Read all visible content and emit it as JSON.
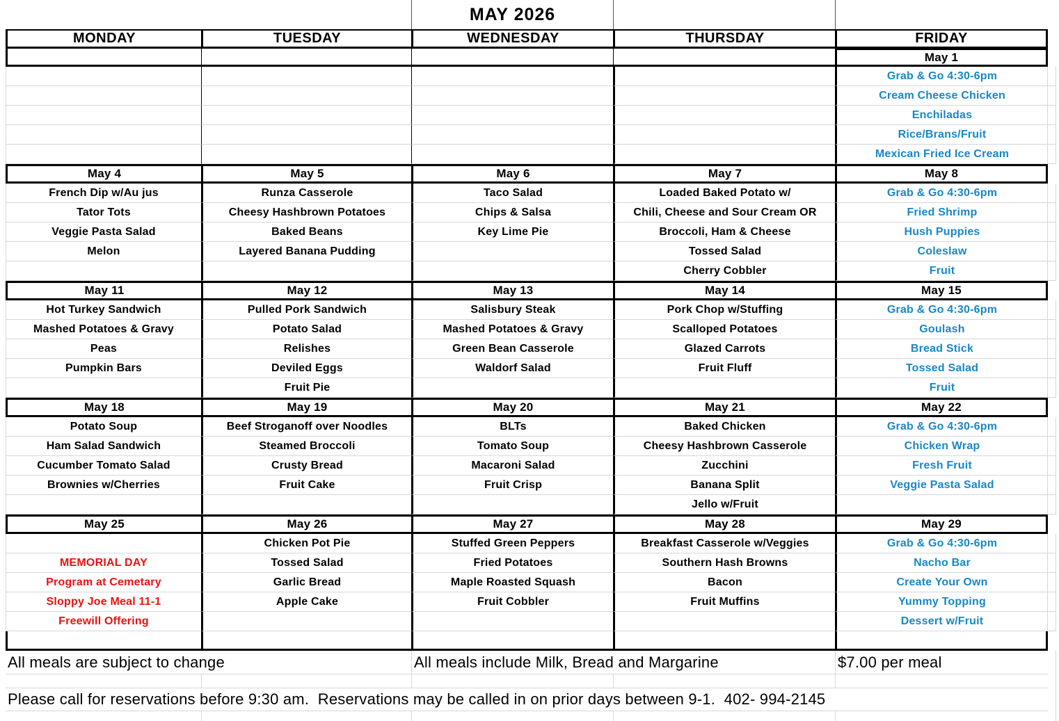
{
  "title": "MAY 2026",
  "colors": {
    "friday_blue": "#1787c9",
    "holiday_red": "#ee1111",
    "border_black": "#000000",
    "gridline_gray": "#d4d7dd"
  },
  "day_headers": [
    "MONDAY",
    "TUESDAY",
    "WEDNESDAY",
    "THURSDAY",
    "FRIDAY"
  ],
  "weeks": [
    {
      "dates": [
        "",
        "",
        "",
        "",
        "May 1"
      ],
      "days": [
        {
          "items": [
            "",
            "",
            "",
            "",
            ""
          ]
        },
        {
          "items": [
            "",
            "",
            "",
            "",
            ""
          ]
        },
        {
          "items": [
            "",
            "",
            "",
            "",
            ""
          ]
        },
        {
          "items": [
            "",
            "",
            "",
            "",
            ""
          ]
        },
        {
          "items": [
            "Grab & Go 4:30-6pm",
            "Cream Cheese Chicken",
            "Enchiladas",
            "Rice/Brans/Fruit",
            "Mexican Fried Ice Cream"
          ]
        }
      ]
    },
    {
      "dates": [
        "May 4",
        "May 5",
        "May 6",
        "May 7",
        "May 8"
      ],
      "days": [
        {
          "items": [
            "French Dip w/Au jus",
            "Tator Tots",
            "Veggie Pasta Salad",
            "Melon",
            ""
          ]
        },
        {
          "items": [
            "Runza Casserole",
            "Cheesy Hashbrown Potatoes",
            "Baked Beans",
            "Layered Banana Pudding",
            ""
          ]
        },
        {
          "items": [
            "Taco Salad",
            "Chips & Salsa",
            "Key Lime Pie",
            "",
            ""
          ]
        },
        {
          "items": [
            "Loaded Baked Potato w/",
            "Chili, Cheese and Sour Cream OR",
            "Broccoli, Ham & Cheese",
            "Tossed Salad",
            "Cherry Cobbler"
          ]
        },
        {
          "items": [
            "Grab & Go 4:30-6pm",
            "Fried Shrimp",
            "Hush Puppies",
            "Coleslaw",
            "Fruit"
          ]
        }
      ]
    },
    {
      "dates": [
        "May 11",
        "May 12",
        "May 13",
        "May 14",
        "May 15"
      ],
      "days": [
        {
          "items": [
            "Hot Turkey Sandwich",
            "Mashed Potatoes & Gravy",
            "Peas",
            "Pumpkin Bars",
            ""
          ]
        },
        {
          "items": [
            "Pulled Pork Sandwich",
            "Potato Salad",
            "Relishes",
            "Deviled Eggs",
            "Fruit Pie"
          ]
        },
        {
          "items": [
            "Salisbury Steak",
            "Mashed Potatoes & Gravy",
            "Green Bean Casserole",
            "Waldorf Salad",
            ""
          ]
        },
        {
          "items": [
            "Pork Chop w/Stuffing",
            "Scalloped Potatoes",
            "Glazed Carrots",
            "Fruit Fluff",
            ""
          ]
        },
        {
          "items": [
            "Grab & Go 4:30-6pm",
            "Goulash",
            "Bread Stick",
            "Tossed Salad",
            "Fruit"
          ]
        }
      ]
    },
    {
      "dates": [
        "May 18",
        "May 19",
        "May 20",
        "May 21",
        "May 22"
      ],
      "days": [
        {
          "items": [
            "Potato Soup",
            "Ham Salad Sandwich",
            "Cucumber Tomato Salad",
            "Brownies w/Cherries",
            ""
          ]
        },
        {
          "items": [
            "Beef Stroganoff over Noodles",
            "Steamed Broccoli",
            "Crusty Bread",
            "Fruit Cake",
            ""
          ]
        },
        {
          "items": [
            "BLTs",
            "Tomato Soup",
            "Macaroni Salad",
            "Fruit Crisp",
            ""
          ]
        },
        {
          "items": [
            "Baked Chicken",
            "Cheesy Hashbrown Casserole",
            "Zucchini",
            "Banana Split",
            "Jello w/Fruit"
          ]
        },
        {
          "items": [
            "Grab & Go 4:30-6pm",
            "Chicken Wrap",
            "Fresh Fruit",
            "Veggie Pasta Salad",
            ""
          ]
        }
      ]
    },
    {
      "dates": [
        "May 25",
        "May 26",
        "May 27",
        "May 28",
        "May 29"
      ],
      "days": [
        {
          "items": [
            "",
            "MEMORIAL DAY",
            "Program at Cemetary",
            "Sloppy Joe Meal 11-1",
            "Freewill Offering"
          ]
        },
        {
          "items": [
            "Chicken Pot Pie",
            "Tossed Salad",
            "Garlic Bread",
            "Apple Cake",
            ""
          ]
        },
        {
          "items": [
            "Stuffed Green Peppers",
            "Fried Potatoes",
            "Maple Roasted Squash",
            "Fruit Cobbler",
            ""
          ]
        },
        {
          "items": [
            "Breakfast Casserole w/Veggies",
            "Southern Hash Browns",
            "Bacon",
            "Fruit Muffins",
            ""
          ]
        },
        {
          "items": [
            "Grab & Go 4:30-6pm",
            "Nacho Bar",
            "Create Your Own",
            "Yummy Topping",
            "Dessert w/Fruit"
          ]
        }
      ]
    }
  ],
  "footer": {
    "change_note": "All meals are subject to change",
    "include_note": "All meals include Milk, Bread and Margarine",
    "price_note": "$7.00 per meal",
    "reservation_note": "Please call for reservations before 9:30 am.  Reservations may be called in on prior days between 9-1.  402- 994-2145"
  }
}
